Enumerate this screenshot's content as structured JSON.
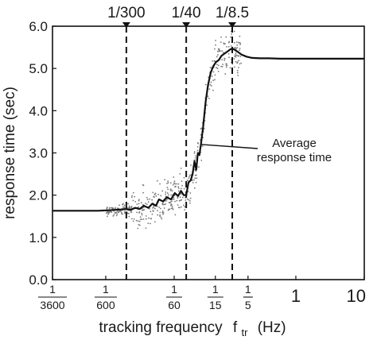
{
  "chart_data": {
    "type": "line",
    "xscale": "log",
    "xlim": [
      0.000277778,
      10
    ],
    "ylim": [
      0,
      6
    ],
    "xlabel": "tracking frequency",
    "xlabel_var": "f",
    "xlabel_sub": "tr",
    "xlabel_unit": "(Hz)",
    "ylabel": "response time (sec)",
    "yticks": [
      {
        "value": 0,
        "label": "0.0"
      },
      {
        "value": 1,
        "label": "1.0"
      },
      {
        "value": 2,
        "label": "2.0"
      },
      {
        "value": 3,
        "label": "3.0"
      },
      {
        "value": 4,
        "label": "4.0"
      },
      {
        "value": 5,
        "label": "5.0"
      },
      {
        "value": 6,
        "label": "6.0"
      }
    ],
    "xticks": [
      {
        "value": 0.000277778,
        "num": "1",
        "den": "3600"
      },
      {
        "value": 0.001666667,
        "num": "1",
        "den": "600"
      },
      {
        "value": 0.016666667,
        "num": "1",
        "den": "60"
      },
      {
        "value": 0.066666667,
        "num": "1",
        "den": "15"
      },
      {
        "value": 0.2,
        "num": "1",
        "den": "5"
      },
      {
        "value": 1,
        "label": "1"
      },
      {
        "value": 10,
        "label": "10"
      }
    ],
    "vlines": [
      {
        "value": 0.003333333,
        "label": "1/300"
      },
      {
        "value": 0.025,
        "label": "1/40"
      },
      {
        "value": 0.117647059,
        "label": "1/8.5"
      }
    ],
    "annotation": {
      "lines": [
        "Average",
        "response time"
      ],
      "target": {
        "x": 0.042,
        "y": 3.2
      }
    },
    "series": [
      {
        "x": [
          0.000277778,
          0.0004,
          0.0006,
          0.0008,
          0.001,
          0.0013,
          0.0017,
          0.0022,
          0.0028,
          0.0033,
          0.0038,
          0.0045,
          0.0052,
          0.006,
          0.007,
          0.008,
          0.009,
          0.01,
          0.0115,
          0.013,
          0.015,
          0.017,
          0.019,
          0.021,
          0.023,
          0.025,
          0.027,
          0.029,
          0.031,
          0.033,
          0.035,
          0.037,
          0.039,
          0.041,
          0.044,
          0.048,
          0.052,
          0.057,
          0.062,
          0.068,
          0.075,
          0.082,
          0.09,
          0.1,
          0.11,
          0.1176,
          0.125,
          0.14,
          0.16,
          0.19,
          0.23,
          0.3,
          0.4,
          0.6,
          1,
          2,
          4,
          10
        ],
        "y": [
          1.63,
          1.63,
          1.63,
          1.63,
          1.63,
          1.63,
          1.64,
          1.65,
          1.66,
          1.67,
          1.65,
          1.7,
          1.67,
          1.75,
          1.7,
          1.8,
          1.75,
          1.9,
          1.85,
          1.95,
          1.9,
          2.05,
          1.98,
          2.1,
          2.0,
          2.0,
          2.3,
          2.35,
          2.5,
          2.8,
          2.6,
          3.0,
          2.95,
          3.2,
          3.6,
          4.2,
          4.6,
          4.9,
          5.05,
          5.15,
          5.2,
          5.3,
          5.35,
          5.4,
          5.45,
          5.47,
          5.45,
          5.4,
          5.33,
          5.28,
          5.25,
          5.24,
          5.24,
          5.23,
          5.23,
          5.23,
          5.23,
          5.23
        ]
      }
    ]
  }
}
